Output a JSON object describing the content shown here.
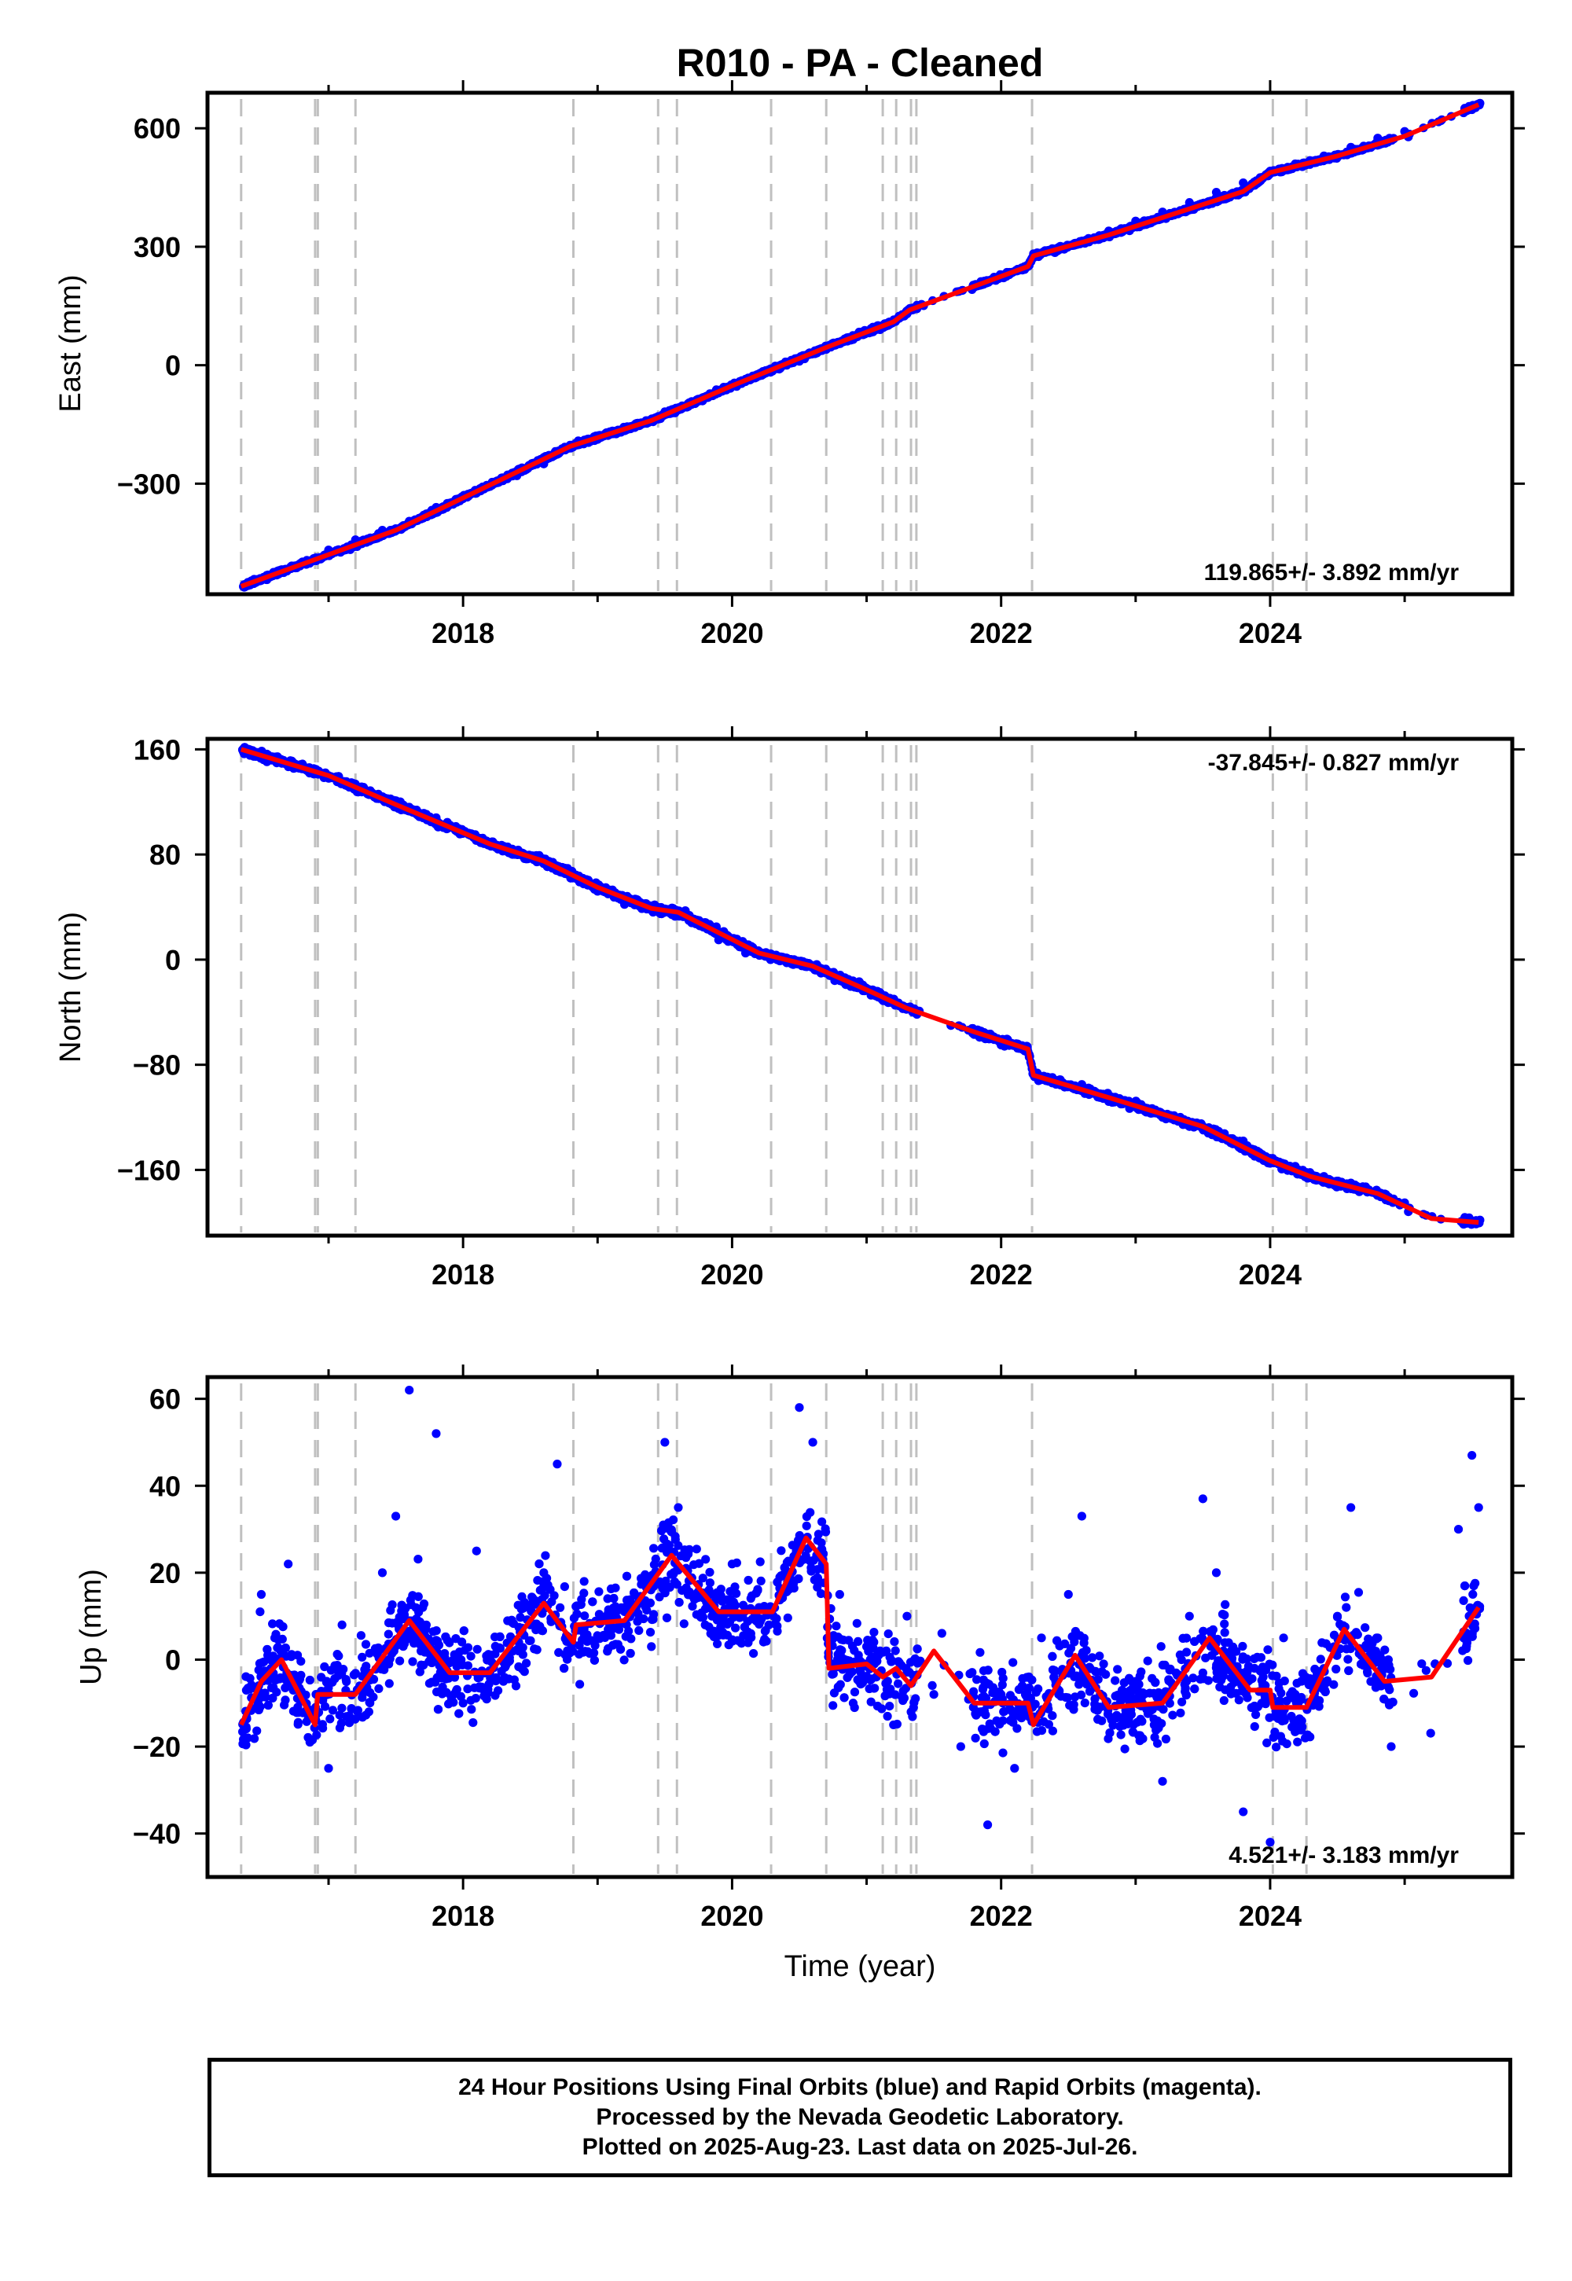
{
  "title": "R010  - PA - Cleaned",
  "xlabel": "Time (year)",
  "footer": {
    "line1": "24 Hour Positions Using Final Orbits (blue) and Rapid Orbits (magenta).",
    "line2": "Processed by the Nevada Geodetic Laboratory.",
    "line3": "Plotted on 2025-Aug-23. Last data on 2025-Jul-26."
  },
  "colors": {
    "points": "#0000ff",
    "fit": "#ff0000",
    "steps": "#c0c0c0"
  },
  "chart_data": [
    {
      "type": "scatter",
      "component": "east",
      "ylabel": "East (mm)",
      "xlim": [
        2016.1,
        2025.8
      ],
      "ylim": [
        -580,
        690
      ],
      "xticks": [
        2018,
        2020,
        2022,
        2024
      ],
      "yticks": [
        -300,
        0,
        300,
        600
      ],
      "rate": "119.865+/- 3.892 mm/yr",
      "rate_position": "bottom-right",
      "step_lines": [
        2016.35,
        2016.9,
        2016.92,
        2017.2,
        2018.82,
        2019.45,
        2019.59,
        2020.29,
        2020.7,
        2021.12,
        2021.22,
        2021.33,
        2021.37,
        2022.23,
        2024.02,
        2024.27
      ],
      "fit": [
        [
          2016.35,
          -560
        ],
        [
          2017.5,
          -418
        ],
        [
          2018.8,
          -205
        ],
        [
          2019.4,
          -140
        ],
        [
          2020.0,
          -52
        ],
        [
          2020.7,
          45
        ],
        [
          2021.2,
          110
        ],
        [
          2021.32,
          140
        ],
        [
          2021.8,
          200
        ],
        [
          2022.2,
          250
        ],
        [
          2022.24,
          277
        ],
        [
          2022.8,
          330
        ],
        [
          2023.8,
          440
        ],
        [
          2024.0,
          488
        ],
        [
          2024.5,
          530
        ],
        [
          2025.0,
          580
        ],
        [
          2025.55,
          660
        ]
      ],
      "series": [
        {
          "name": "",
          "x": [
            2016.4,
            2016.6,
            2016.8,
            2017.0,
            2017.2,
            2017.4,
            2017.6,
            2017.8,
            2018.0,
            2018.2,
            2018.4,
            2018.6,
            2018.8,
            2019.0,
            2019.2,
            2019.5,
            2019.7,
            2019.9,
            2020.1,
            2020.3,
            2020.5,
            2020.7,
            2020.9,
            2021.1,
            2021.3,
            2021.8,
            2022.0,
            2022.2,
            2022.4,
            2022.6,
            2022.8,
            2023.0,
            2023.2,
            2023.4,
            2023.6,
            2023.8,
            2024.0,
            2024.2,
            2024.4,
            2024.6,
            2024.8,
            2025.0,
            2025.45,
            2025.55
          ],
          "values": [
            -550,
            -525,
            -500,
            -468,
            -442,
            -418,
            -395,
            -360,
            -332,
            -307,
            -280,
            -250,
            -210,
            -188,
            -165,
            -118,
            -92,
            -70,
            -40,
            -15,
            10,
            40,
            65,
            90,
            130,
            200,
            222,
            250,
            285,
            310,
            340,
            365,
            388,
            412,
            438,
            462,
            490,
            508,
            530,
            552,
            575,
            592,
            645,
            660
          ]
        }
      ]
    },
    {
      "type": "scatter",
      "component": "north",
      "ylabel": "North (mm)",
      "xlim": [
        2016.1,
        2025.8
      ],
      "ylim": [
        -210,
        168
      ],
      "xticks": [
        2018,
        2020,
        2022,
        2024
      ],
      "yticks": [
        -160,
        -80,
        0,
        80,
        160
      ],
      "rate": "-37.845+/- 0.827 mm/yr",
      "rate_position": "top-right",
      "step_lines": [
        2016.35,
        2016.9,
        2016.92,
        2017.2,
        2018.82,
        2019.45,
        2019.59,
        2020.29,
        2020.7,
        2021.12,
        2021.22,
        2021.33,
        2021.37,
        2022.23,
        2024.02,
        2024.27
      ],
      "fit": [
        [
          2016.35,
          160
        ],
        [
          2017.0,
          140
        ],
        [
          2017.5,
          118
        ],
        [
          2018.2,
          88
        ],
        [
          2018.6,
          75
        ],
        [
          2019.0,
          55
        ],
        [
          2019.4,
          39
        ],
        [
          2019.6,
          36
        ],
        [
          2020.2,
          5
        ],
        [
          2020.6,
          -5
        ],
        [
          2021.0,
          -23
        ],
        [
          2021.3,
          -37
        ],
        [
          2021.8,
          -55
        ],
        [
          2022.2,
          -68
        ],
        [
          2022.24,
          -88
        ],
        [
          2022.8,
          -105
        ],
        [
          2023.5,
          -127
        ],
        [
          2024.0,
          -153
        ],
        [
          2024.3,
          -165
        ],
        [
          2024.8,
          -178
        ],
        [
          2025.2,
          -197
        ],
        [
          2025.55,
          -200
        ]
      ],
      "series": [
        {
          "name": "",
          "x": [
            2016.4,
            2016.6,
            2016.8,
            2017.0,
            2017.2,
            2017.4,
            2017.6,
            2017.8,
            2018.0,
            2018.2,
            2018.4,
            2018.6,
            2018.8,
            2019.0,
            2019.2,
            2019.5,
            2019.7,
            2019.9,
            2020.1,
            2020.3,
            2020.5,
            2020.7,
            2020.9,
            2021.1,
            2021.3,
            2021.8,
            2022.0,
            2022.2,
            2022.4,
            2022.6,
            2022.8,
            2023.0,
            2023.2,
            2023.4,
            2023.6,
            2023.8,
            2024.0,
            2024.2,
            2024.4,
            2024.6,
            2024.8,
            2025.0,
            2025.45,
            2025.55
          ],
          "values": [
            158,
            152,
            146,
            138,
            131,
            124,
            116,
            108,
            97,
            88,
            80,
            73,
            62,
            52,
            42,
            38,
            28,
            15,
            5,
            2,
            -2,
            -10,
            -18,
            -25,
            -37,
            -57,
            -65,
            -70,
            -92,
            -95,
            -108,
            -112,
            -120,
            -127,
            -130,
            -138,
            -155,
            -160,
            -165,
            -170,
            -178,
            -185,
            -197,
            -200
          ]
        }
      ]
    },
    {
      "type": "scatter",
      "component": "up",
      "ylabel": "Up (mm)",
      "xlim": [
        2016.1,
        2025.8
      ],
      "ylim": [
        -50,
        65
      ],
      "xticks": [
        2018,
        2020,
        2022,
        2024
      ],
      "yticks": [
        -40,
        -20,
        0,
        20,
        40,
        60
      ],
      "rate": "4.521+/- 3.183 mm/yr",
      "rate_position": "bottom-right",
      "step_lines": [
        2016.35,
        2016.9,
        2016.92,
        2017.2,
        2018.82,
        2019.45,
        2019.59,
        2020.29,
        2020.7,
        2021.12,
        2021.22,
        2021.33,
        2021.37,
        2022.23,
        2024.02,
        2024.27
      ],
      "fit": [
        [
          2016.35,
          -15
        ],
        [
          2016.5,
          -5
        ],
        [
          2016.65,
          0
        ],
        [
          2016.9,
          -15
        ],
        [
          2016.92,
          -8
        ],
        [
          2017.2,
          -8
        ],
        [
          2017.6,
          9
        ],
        [
          2017.9,
          -3
        ],
        [
          2018.2,
          -3
        ],
        [
          2018.6,
          13
        ],
        [
          2018.82,
          4
        ],
        [
          2018.84,
          8
        ],
        [
          2019.2,
          9
        ],
        [
          2019.55,
          24
        ],
        [
          2019.9,
          11
        ],
        [
          2020.3,
          11
        ],
        [
          2020.55,
          28
        ],
        [
          2020.7,
          22
        ],
        [
          2020.72,
          -2
        ],
        [
          2021.0,
          -1
        ],
        [
          2021.12,
          -4
        ],
        [
          2021.22,
          -2
        ],
        [
          2021.33,
          -6
        ],
        [
          2021.5,
          2
        ],
        [
          2021.8,
          -10
        ],
        [
          2022.2,
          -10
        ],
        [
          2022.24,
          -15
        ],
        [
          2022.55,
          1
        ],
        [
          2022.8,
          -11
        ],
        [
          2023.2,
          -10
        ],
        [
          2023.55,
          5
        ],
        [
          2023.85,
          -7
        ],
        [
          2024.0,
          -7
        ],
        [
          2024.02,
          -11
        ],
        [
          2024.27,
          -11
        ],
        [
          2024.55,
          7
        ],
        [
          2024.85,
          -5
        ],
        [
          2025.2,
          -4
        ],
        [
          2025.55,
          12
        ]
      ],
      "series": [
        {
          "name": "",
          "x": [
            2016.4,
            2016.5,
            2016.6,
            2016.7,
            2016.8,
            2017.0,
            2017.1,
            2017.3,
            2017.4,
            2017.5,
            2017.6,
            2017.7,
            2017.8,
            2018.0,
            2018.1,
            2018.3,
            2018.5,
            2018.6,
            2018.7,
            2018.9,
            2019.0,
            2019.2,
            2019.4,
            2019.5,
            2019.6,
            2019.8,
            2020.0,
            2020.2,
            2020.4,
            2020.5,
            2020.6,
            2020.8,
            2020.9,
            2021.0,
            2021.2,
            2021.3,
            2021.5,
            2021.7,
            2021.9,
            2022.0,
            2022.1,
            2022.3,
            2022.5,
            2022.6,
            2022.9,
            2023.0,
            2023.2,
            2023.4,
            2023.5,
            2023.6,
            2023.8,
            2024.0,
            2024.1,
            2024.3,
            2024.5,
            2024.6,
            2024.8,
            2024.9,
            2025.4,
            2025.5,
            2025.55
          ],
          "values": [
            -18,
            15,
            5,
            22,
            -8,
            -25,
            8,
            -12,
            20,
            33,
            62,
            12,
            52,
            -10,
            25,
            -5,
            8,
            20,
            45,
            18,
            5,
            12,
            3,
            50,
            35,
            8,
            22,
            12,
            20,
            58,
            50,
            15,
            -10,
            3,
            -15,
            10,
            -8,
            -20,
            -38,
            -8,
            -25,
            5,
            15,
            33,
            -15,
            -5,
            -28,
            10,
            37,
            20,
            -35,
            -42,
            5,
            -10,
            10,
            35,
            5,
            -20,
            30,
            47,
            35
          ]
        }
      ]
    }
  ]
}
